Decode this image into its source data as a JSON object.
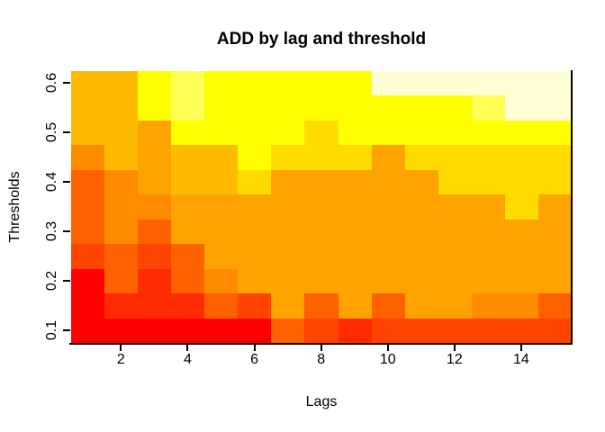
{
  "title": "ADD by lag and threshold",
  "x_axis": {
    "label": "Lags",
    "tick_values": [
      2,
      4,
      6,
      8,
      10,
      12,
      14
    ]
  },
  "y_axis": {
    "label": "Thresholds",
    "tick_values": [
      0.1,
      0.2,
      0.3,
      0.4,
      0.5,
      0.6
    ]
  },
  "chart_data": {
    "type": "heatmap",
    "title": "ADD by lag and threshold",
    "xlabel": "Lags",
    "ylabel": "Thresholds",
    "x_values_lags": [
      1,
      2,
      3,
      4,
      5,
      6,
      7,
      8,
      9,
      10,
      11,
      12,
      13,
      14,
      15
    ],
    "y_values_thresholds": [
      0.6,
      0.55,
      0.5,
      0.45,
      0.4,
      0.35,
      0.3,
      0.25,
      0.2,
      0.15,
      0.1
    ],
    "xlim": [
      0.5,
      15.5
    ],
    "ylim": [
      0.075,
      0.625
    ],
    "legend": "none",
    "grid": false,
    "palette_name": "heat-colors-red-to-cream",
    "palette_hex": [
      "#FF0000",
      "#FF2A00",
      "#FF4300",
      "#FF6000",
      "#FF7400",
      "#FF8C00",
      "#FFA300",
      "#FFBB00",
      "#FFDB00",
      "#FFFF00",
      "#FFFF55",
      "#FFFFD5"
    ],
    "rows_order": "top row = threshold 0.6, bottom row = threshold 0.1; columns = lags 1..15 left to right",
    "color_level_grid": [
      [
        8,
        8,
        10,
        11,
        10,
        10,
        10,
        10,
        10,
        12,
        12,
        12,
        12,
        12,
        12
      ],
      [
        8,
        8,
        10,
        11,
        10,
        10,
        10,
        10,
        10,
        10,
        10,
        10,
        11,
        12,
        12
      ],
      [
        8,
        8,
        7,
        10,
        10,
        10,
        10,
        9,
        10,
        10,
        10,
        10,
        10,
        10,
        10
      ],
      [
        6,
        8,
        7,
        8,
        8,
        10,
        9,
        9,
        9,
        7,
        9,
        9,
        9,
        9,
        9
      ],
      [
        4,
        6,
        7,
        8,
        8,
        9,
        7,
        7,
        7,
        7,
        7,
        9,
        9,
        9,
        9
      ],
      [
        4,
        6,
        6,
        7,
        7,
        7,
        7,
        7,
        7,
        7,
        7,
        7,
        7,
        9,
        7
      ],
      [
        4,
        6,
        4,
        7,
        7,
        7,
        7,
        7,
        7,
        7,
        7,
        7,
        7,
        7,
        7
      ],
      [
        3,
        4,
        3,
        4,
        7,
        7,
        7,
        7,
        7,
        7,
        7,
        7,
        7,
        7,
        7
      ],
      [
        1,
        4,
        2,
        4,
        6,
        7,
        7,
        7,
        7,
        7,
        7,
        7,
        7,
        7,
        7
      ],
      [
        1,
        2,
        2,
        2,
        4,
        3,
        7,
        4,
        7,
        4,
        7,
        7,
        6,
        6,
        4
      ],
      [
        1,
        1,
        1,
        1,
        1,
        1,
        4,
        3,
        2,
        3,
        3,
        3,
        3,
        3,
        3
      ]
    ]
  },
  "colors": {
    "background": "#FFFFFF",
    "axis": "#000000",
    "text": "#000000"
  }
}
